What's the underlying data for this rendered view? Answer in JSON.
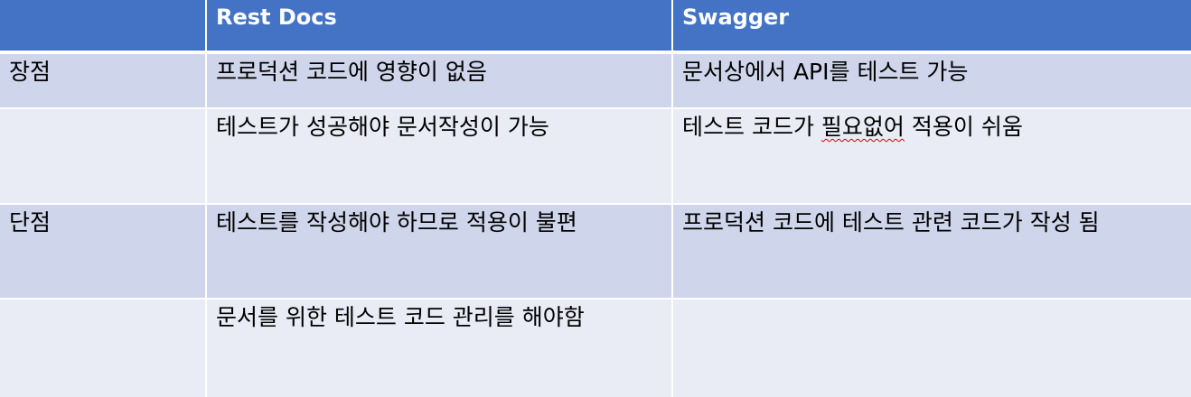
{
  "header": {
    "col0": "",
    "col1": "Rest Docs",
    "col2": "Swagger"
  },
  "rows": [
    {
      "label": "장점",
      "rest_docs": "프로덕션 코드에 영향이 없음",
      "swagger": "문서상에서 API를 테스트 가능"
    },
    {
      "label": "",
      "rest_docs": "테스트가 성공해야 문서작성이 가능",
      "swagger_pre": "테스트 코드가 ",
      "swagger_flagged": "필요없어",
      "swagger_post": " 적용이 쉬움"
    },
    {
      "label": "단점",
      "rest_docs": "테스트를 작성해야 하므로 적용이 불편",
      "swagger": "프로덕션 코드에 테스트 관련 코드가 작성 됨"
    },
    {
      "label": "",
      "rest_docs": "문서를 위한 테스트 코드 관리를 해야함",
      "swagger": ""
    }
  ],
  "colors": {
    "header_bg": "#4472c4",
    "row_dark": "#cfd5ea",
    "row_light": "#e9ebf5",
    "header_text": "#ffffff"
  }
}
